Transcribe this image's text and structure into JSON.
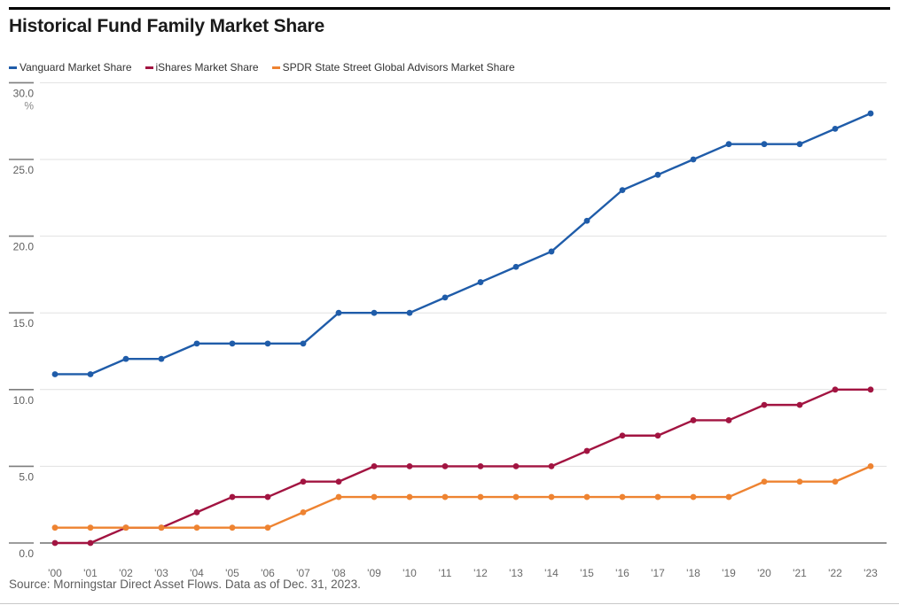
{
  "header": {
    "title": "Historical Fund Family Market Share"
  },
  "footer": {
    "source": "Source: Morningstar Direct Asset Flows. Data as of Dec. 31, 2023."
  },
  "chart_data": {
    "type": "line",
    "title": "Historical Fund Family Market Share",
    "xlabel": "",
    "ylabel": "%",
    "ylim": [
      0,
      30
    ],
    "yticks": [
      30.0,
      25.0,
      20.0,
      15.0,
      10.0,
      5.0,
      0.0
    ],
    "ytick_labels": [
      "30.0",
      "25.0",
      "20.0",
      "15.0",
      "10.0",
      "5.0",
      "0.0"
    ],
    "percent_symbol": "%",
    "grid": "horizontal",
    "legend_position": "top-left",
    "x_labels": [
      "'00",
      "'01",
      "'02",
      "'03",
      "'04",
      "'05",
      "'06",
      "'07",
      "'08",
      "'09",
      "'10",
      "'11",
      "'12",
      "'13",
      "'14",
      "'15",
      "'16",
      "'17",
      "'18",
      "'19",
      "'20",
      "'21",
      "'22",
      "'23"
    ],
    "series": [
      {
        "name": "Vanguard Market Share",
        "color": "#1F5CA9",
        "values": [
          11.0,
          11.0,
          12.0,
          12.0,
          13.0,
          13.0,
          13.0,
          13.0,
          15.0,
          15.0,
          15.0,
          16.0,
          17.0,
          18.0,
          19.0,
          21.0,
          23.0,
          24.0,
          25.0,
          26.0,
          26.0,
          26.0,
          27.0,
          28.0
        ]
      },
      {
        "name": "iShares Market Share",
        "color": "#A21441",
        "values": [
          0.0,
          0.0,
          1.0,
          1.0,
          2.0,
          3.0,
          3.0,
          4.0,
          4.0,
          5.0,
          5.0,
          5.0,
          5.0,
          5.0,
          5.0,
          6.0,
          7.0,
          7.0,
          8.0,
          8.0,
          9.0,
          9.0,
          10.0,
          10.0
        ]
      },
      {
        "name": "SPDR State Street Global Advisors Market Share",
        "color": "#EE8331",
        "values": [
          1.0,
          1.0,
          1.0,
          1.0,
          1.0,
          1.0,
          1.0,
          2.0,
          3.0,
          3.0,
          3.0,
          3.0,
          3.0,
          3.0,
          3.0,
          3.0,
          3.0,
          3.0,
          3.0,
          3.0,
          4.0,
          4.0,
          4.0,
          5.0
        ]
      }
    ]
  }
}
